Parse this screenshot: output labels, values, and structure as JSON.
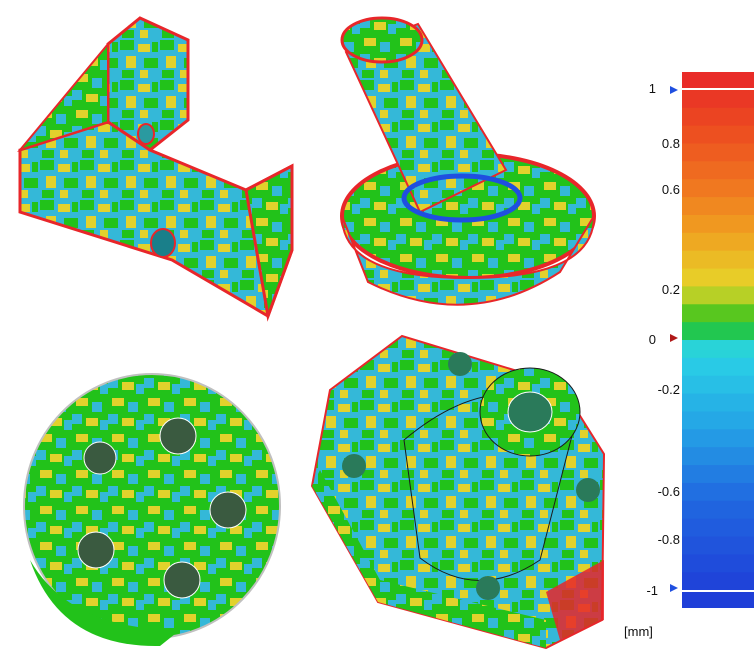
{
  "colors": {
    "red": "#e8262a",
    "orange": "#f08a1e",
    "yellow": "#e6d52a",
    "green": "#1fc21a",
    "cyan": "#2ad4e6",
    "blue": "#1f4fe0"
  },
  "legend": {
    "ticks": [
      "1",
      "0.8",
      "0.6",
      "0.2",
      "0",
      "-0.2",
      "-0.6",
      "-0.8",
      "-1"
    ],
    "unit": "[mm]"
  }
}
